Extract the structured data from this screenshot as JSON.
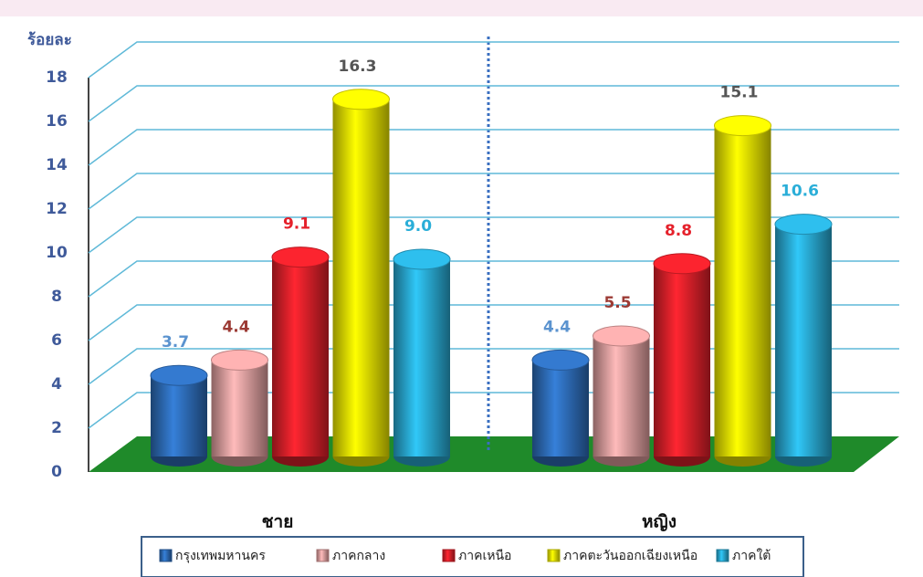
{
  "chart_data": {
    "type": "bar3d",
    "y_label": "ร้อยละ",
    "categories": [
      "ชาย",
      "หญิง"
    ],
    "series": [
      {
        "name": "กรุงเทพมหานคร",
        "color": "#2f6fbd",
        "label_color": "#5b93cf",
        "values": [
          3.7,
          4.4
        ],
        "value_labels": [
          "3.7",
          "4.4"
        ]
      },
      {
        "name": "ภาคกลาง",
        "color": "#e8a3a3",
        "label_color": "#9c3b35",
        "values": [
          4.4,
          5.5
        ],
        "value_labels": [
          "4.4",
          "5.5"
        ]
      },
      {
        "name": "ภาคเหนือ",
        "color": "#e5212b",
        "label_color": "#e5212b",
        "values": [
          9.1,
          8.8
        ],
        "value_labels": [
          "9.1",
          "8.8"
        ]
      },
      {
        "name": "ภาคตะวันออกเฉียงเหนือ",
        "color": "#f3ee00",
        "label_color": "#555555",
        "values": [
          16.3,
          15.1
        ],
        "value_labels": [
          "16.3",
          "15.1"
        ]
      },
      {
        "name": "ภาคใต้",
        "color": "#2aaed8",
        "label_color": "#2aaed8",
        "values": [
          9.0,
          10.6
        ],
        "value_labels": [
          "9.0",
          "10.6"
        ]
      }
    ],
    "ylim": [
      0,
      18
    ],
    "yticks": [
      0,
      2,
      4,
      6,
      8,
      10,
      12,
      14,
      16,
      18
    ],
    "grid": true
  }
}
